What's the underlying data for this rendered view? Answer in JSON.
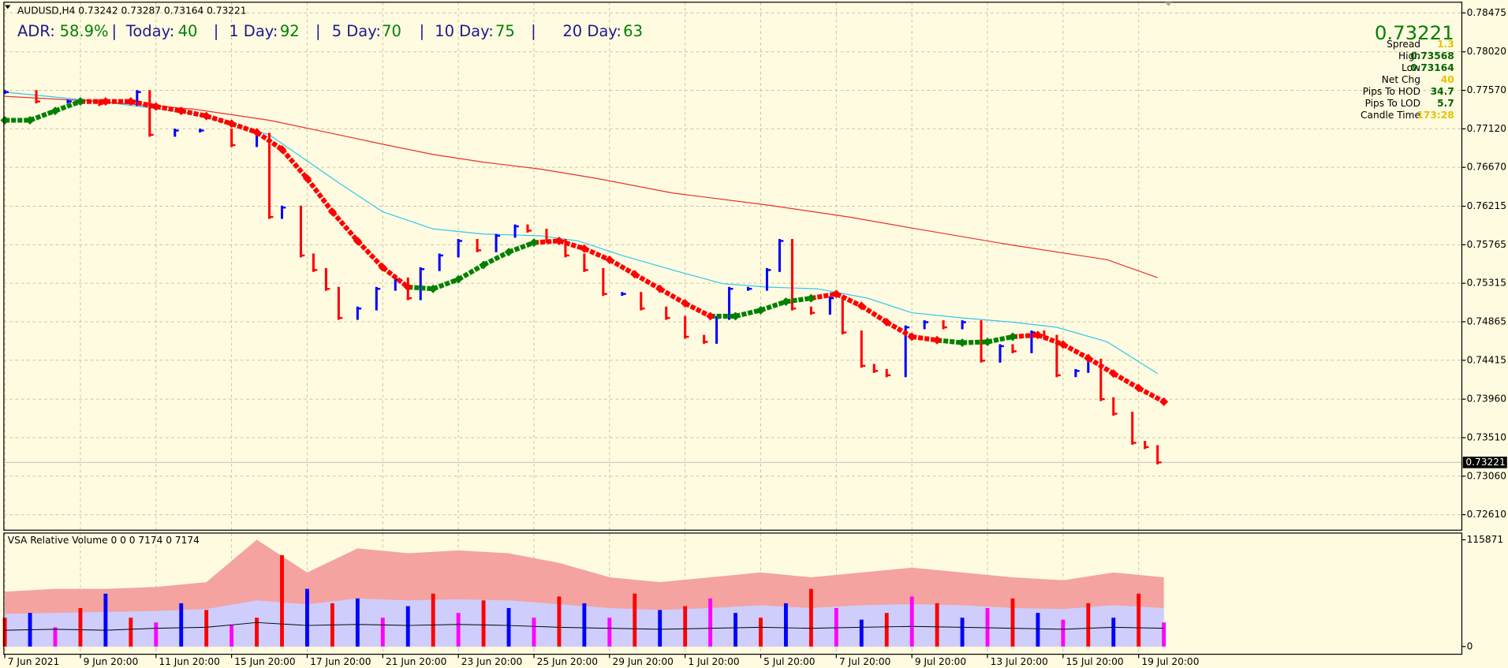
{
  "adr": {
    "separator": "|",
    "items": [
      {
        "label": "ADR:",
        "value": "58.9%"
      },
      {
        "label": "Today:",
        "value": "40"
      },
      {
        "label": "1 Day:",
        "value": "92"
      },
      {
        "label": "5 Day:",
        "value": "70"
      },
      {
        "label": "10 Day:",
        "value": "75"
      },
      {
        "label": "20 Day:",
        "value": "63"
      }
    ]
  },
  "info": {
    "price": "0.73221",
    "rows": [
      {
        "label": "Spread",
        "value": "1.3",
        "color": "#e6c200"
      },
      {
        "label": "High",
        "value": "0.73568",
        "color": "#006400"
      },
      {
        "label": "Low",
        "value": "0.73164",
        "color": "#006400"
      },
      {
        "label": "Net Chg",
        "value": "40",
        "color": "#e6c200"
      },
      {
        "label": "Pips To HOD",
        "value": "34.7",
        "color": "#006400"
      },
      {
        "label": "Pips To LOD",
        "value": "5.7",
        "color": "#006400"
      },
      {
        "label": "Candle Time",
        "value": "173:28",
        "color": "#e6c200"
      }
    ]
  },
  "chart_data": [
    {
      "type": "ohlc",
      "title": "AUDUSD,H4  0.73242 0.73287 0.73164 0.73221",
      "last": 0.73221,
      "xlim": [
        0,
        231
      ],
      "ylim": [
        0.7244,
        0.786
      ],
      "grid": true,
      "xticks": [
        {
          "value": 0,
          "label": "7 Jun 2021"
        },
        {
          "value": 12,
          "label": "9 Jun 20:00"
        },
        {
          "value": 24,
          "label": "11 Jun 20:00"
        },
        {
          "value": 36,
          "label": "15 Jun 20:00"
        },
        {
          "value": 48,
          "label": "17 Jun 20:00"
        },
        {
          "value": 60,
          "label": "21 Jun 20:00"
        },
        {
          "value": 72,
          "label": "23 Jun 20:00"
        },
        {
          "value": 84,
          "label": "25 Jun 20:00"
        },
        {
          "value": 96,
          "label": "29 Jun 20:00"
        },
        {
          "value": 108,
          "label": "1 Jul 20:00"
        },
        {
          "value": 120,
          "label": "5 Jul 20:00"
        },
        {
          "value": 132,
          "label": "7 Jul 20:00"
        },
        {
          "value": 144,
          "label": "9 Jul 20:00"
        },
        {
          "value": 156,
          "label": "13 Jul 20:00"
        },
        {
          "value": 168,
          "label": "15 Jul 20:00"
        },
        {
          "value": 180,
          "label": "19 Jul 20:00"
        }
      ],
      "yticks": [
        0.78475,
        {
          "value": 0.7802,
          "label": "0.78020"
        },
        {
          "value": 0.7757,
          "label": "0.77570"
        },
        {
          "value": 0.7712,
          "label": "0.77120"
        },
        {
          "value": 0.7667,
          "label": "0.76670"
        },
        0.76215,
        0.75765,
        0.75315,
        0.74865,
        0.74415,
        {
          "value": 0.7396,
          "label": "0.73960"
        },
        {
          "value": 0.7351,
          "label": "0.73510"
        },
        {
          "value": 0.7306,
          "label": "0.73060"
        },
        {
          "value": 0.7261,
          "label": "0.72610"
        }
      ],
      "up_color": "#0000ff",
      "down_color": "#ff0000",
      "x": [
        0,
        5,
        10,
        15,
        21,
        23,
        27,
        31,
        36,
        40,
        42,
        44,
        47,
        49,
        51,
        53,
        56,
        59,
        62,
        64,
        66,
        69,
        72,
        75,
        78,
        81,
        83,
        86,
        89,
        92,
        95,
        98,
        101,
        105,
        108,
        111,
        113,
        115,
        118,
        121,
        123,
        125,
        128,
        131,
        133,
        136,
        138,
        140,
        143,
        146,
        149,
        152,
        155,
        158,
        160,
        163,
        165,
        167,
        170,
        172,
        174,
        176,
        179,
        181,
        183
      ],
      "close": [
        0.7755,
        0.7744,
        0.7744,
        0.7741,
        0.7755,
        0.7705,
        0.771,
        0.771,
        0.7693,
        0.7705,
        0.7609,
        0.762,
        0.7564,
        0.7547,
        0.7525,
        0.7491,
        0.7502,
        0.7525,
        0.7536,
        0.7514,
        0.7548,
        0.7564,
        0.7581,
        0.757,
        0.7587,
        0.7598,
        0.7593,
        0.7581,
        0.7564,
        0.7547,
        0.7519,
        0.7519,
        0.7502,
        0.7491,
        0.7469,
        0.7463,
        0.7491,
        0.7525,
        0.7525,
        0.7547,
        0.7581,
        0.7502,
        0.7497,
        0.7514,
        0.7474,
        0.7435,
        0.7429,
        0.7424,
        0.748,
        0.7486,
        0.748,
        0.7486,
        0.7441,
        0.7458,
        0.7452,
        0.7474,
        0.7469,
        0.7424,
        0.7429,
        0.7441,
        0.7396,
        0.7379,
        0.7345,
        0.734,
        0.73221
      ],
      "lines": [
        {
          "color": "#33c6f0",
          "x": [
            0,
            15,
            30,
            42,
            53,
            60,
            68,
            76,
            85,
            91,
            98,
            106,
            114,
            121,
            129,
            137,
            144,
            152,
            160,
            167,
            175,
            183
          ],
          "values": [
            0.7755,
            0.7744,
            0.773,
            0.7705,
            0.7649,
            0.7615,
            0.7595,
            0.7589,
            0.7587,
            0.7581,
            0.7564,
            0.7547,
            0.7531,
            0.7527,
            0.7525,
            0.7514,
            0.7497,
            0.7491,
            0.7486,
            0.748,
            0.7463,
            0.7426
          ]
        },
        {
          "color": "#e8322a",
          "x": [
            0,
            15,
            30,
            42,
            53,
            60,
            68,
            76,
            85,
            94,
            106,
            121,
            134,
            144,
            160,
            175,
            183
          ],
          "values": [
            0.775,
            0.7744,
            0.7735,
            0.7722,
            0.7705,
            0.7694,
            0.7682,
            0.7673,
            0.7665,
            0.7654,
            0.7637,
            0.7623,
            0.7609,
            0.7596,
            0.7576,
            0.7559,
            0.7538
          ]
        }
      ],
      "signal": {
        "x": [
          0,
          4,
          8,
          12,
          16,
          20,
          24,
          28,
          32,
          36,
          40,
          44,
          48,
          52,
          56,
          60,
          64,
          68,
          72,
          76,
          80,
          84,
          88,
          92,
          96,
          100,
          104,
          108,
          112,
          116,
          120,
          124,
          128,
          132,
          136,
          140,
          144,
          148,
          152,
          156,
          160,
          164,
          168,
          172,
          176,
          180,
          184
        ],
        "values": [
          0.7722,
          0.7722,
          0.7733,
          0.7744,
          0.7744,
          0.7744,
          0.7738,
          0.7733,
          0.7727,
          0.7718,
          0.7708,
          0.7688,
          0.7654,
          0.7615,
          0.7581,
          0.755,
          0.7527,
          0.7525,
          0.7536,
          0.7553,
          0.7568,
          0.7579,
          0.7581,
          0.7572,
          0.7559,
          0.7542,
          0.7525,
          0.7508,
          0.7493,
          0.7493,
          0.75,
          0.751,
          0.7514,
          0.7519,
          0.7505,
          0.7486,
          0.7469,
          0.7465,
          0.7462,
          0.7463,
          0.7469,
          0.7471,
          0.746,
          0.7444,
          0.7426,
          0.7409,
          0.7393
        ],
        "colors": [
          "#008000",
          "#008000",
          "#008000",
          "#008000",
          "#ff0000",
          "#ff0000",
          "#ff0000",
          "#ff0000",
          "#ff0000",
          "#ff0000",
          "#ff0000",
          "#ff0000",
          "#ff0000",
          "#ff0000",
          "#ff0000",
          "#ff0000",
          "#ff0000",
          "#008000",
          "#008000",
          "#008000",
          "#008000",
          "#008000",
          "#ff0000",
          "#ff0000",
          "#ff0000",
          "#ff0000",
          "#ff0000",
          "#ff0000",
          "#ff0000",
          "#008000",
          "#008000",
          "#008000",
          "#008000",
          "#ff0000",
          "#ff0000",
          "#ff0000",
          "#ff0000",
          "#ff0000",
          "#008000",
          "#008000",
          "#008000",
          "#ff0000",
          "#ff0000",
          "#ff0000",
          "#ff0000",
          "#ff0000",
          "#ff0000"
        ]
      }
    },
    {
      "type": "volume",
      "title": "VSA Relative Volume 0 0 0 7174 0 7174",
      "ylim": [
        -8350,
        122135
      ],
      "yticks": [
        115871,
        0
      ],
      "x": [
        0,
        4,
        8,
        12,
        16,
        20,
        24,
        28,
        32,
        36,
        40,
        44,
        48,
        52,
        56,
        60,
        64,
        68,
        72,
        76,
        80,
        84,
        88,
        92,
        96,
        100,
        104,
        108,
        112,
        116,
        120,
        124,
        128,
        132,
        136,
        140,
        144,
        148,
        152,
        156,
        160,
        164,
        168,
        172,
        176,
        180,
        184
      ],
      "values": [
        31300,
        36500,
        20900,
        41800,
        57400,
        31300,
        26100,
        47000,
        39700,
        23000,
        31300,
        99200,
        62600,
        47000,
        52200,
        31300,
        43800,
        57400,
        36500,
        50100,
        41800,
        31300,
        54300,
        47000,
        31300,
        57400,
        39700,
        43800,
        52200,
        36500,
        31300,
        47000,
        62600,
        41800,
        29200,
        36500,
        54300,
        47000,
        31300,
        41800,
        52200,
        36500,
        29200,
        47000,
        31300,
        57400,
        26100
      ],
      "colors": [
        "#ff0000",
        "#0000ff",
        "#ff00ff",
        "#ff0000",
        "#0000ff",
        "#ff0000",
        "#ff00ff",
        "#0000ff",
        "#ff0000",
        "#ff00ff",
        "#ff0000",
        "#ff0000",
        "#0000ff",
        "#ff0000",
        "#0000ff",
        "#ff00ff",
        "#0000ff",
        "#ff0000",
        "#ff00ff",
        "#ff0000",
        "#0000ff",
        "#ff00ff",
        "#ff0000",
        "#0000ff",
        "#ff00ff",
        "#ff0000",
        "#0000ff",
        "#ff0000",
        "#ff00ff",
        "#0000ff",
        "#ff0000",
        "#0000ff",
        "#ff0000",
        "#ff00ff",
        "#0000ff",
        "#ff0000",
        "#ff00ff",
        "#ff0000",
        "#0000ff",
        "#ff00ff",
        "#ff0000",
        "#0000ff",
        "#ff00ff",
        "#ff0000",
        "#0000ff",
        "#ff0000",
        "#ff00ff"
      ],
      "bands": {
        "x": [
          0,
          8,
          16,
          24,
          32,
          40,
          48,
          56,
          64,
          72,
          80,
          88,
          96,
          104,
          112,
          120,
          128,
          136,
          144,
          152,
          160,
          168,
          176,
          184
        ],
        "areas": [
          {
            "color": "#f4a3a0",
            "values": [
              59500,
              62600,
              62600,
              64700,
              69900,
              115900,
              80400,
              106500,
              101300,
              104400,
              101300,
              90800,
              75200,
              69900,
              75200,
              80400,
              75200,
              80400,
              85600,
              80400,
              75200,
              72000,
              80400,
              75200
            ]
          },
          {
            "color": "#cfcdfc",
            "values": [
              35500,
              36500,
              37600,
              38600,
              40700,
              50100,
              45900,
              52200,
              50100,
              51200,
              50100,
              46000,
              41800,
              39700,
              41800,
              44900,
              41800,
              44900,
              45900,
              44900,
              41800,
              40700,
              44900,
              41800
            ]
          }
        ],
        "line": {
          "color": "#000000",
          "values": [
            17700,
            18800,
            17700,
            19800,
            20900,
            26100,
            22900,
            24000,
            22900,
            24000,
            22900,
            20900,
            19800,
            18800,
            19800,
            20900,
            19800,
            20900,
            21900,
            20900,
            19800,
            18800,
            20900,
            19800
          ]
        }
      }
    }
  ]
}
